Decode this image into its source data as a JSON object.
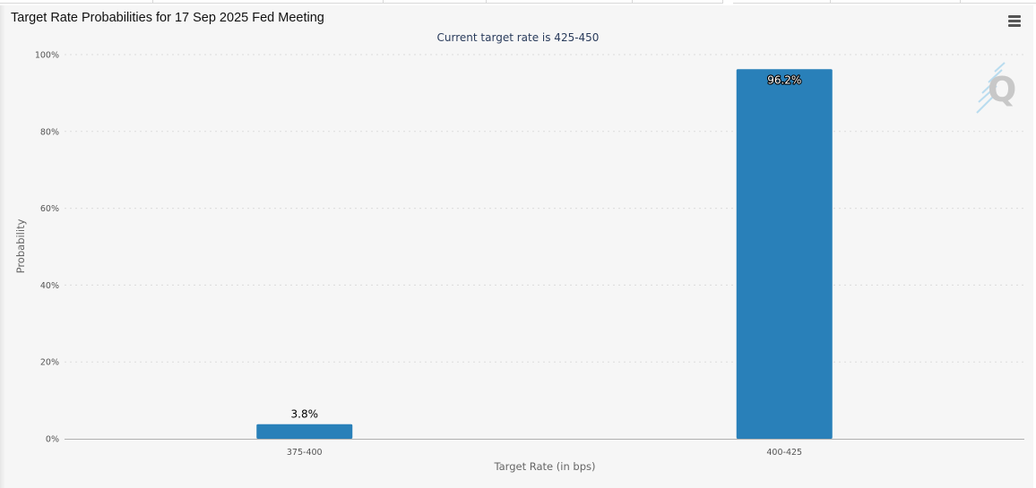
{
  "header": {
    "title": "Target Rate Probabilities for 17 Sep 2025 Fed Meeting",
    "subtitle": "Current target rate is 425-450"
  },
  "colors": {
    "bar": "#2980b9",
    "grid": "#dcdcdc",
    "axis_text": "#555555",
    "background": "#f6f6f6"
  },
  "icons": {
    "menu": "hamburger-menu-icon",
    "watermark": "q-logo-watermark"
  },
  "chart_data": {
    "type": "bar",
    "title": "Target Rate Probabilities for 17 Sep 2025 Fed Meeting",
    "subtitle": "Current target rate is 425-450",
    "xlabel": "Target Rate (in bps)",
    "ylabel": "Probability",
    "categories": [
      "375-400",
      "400-425"
    ],
    "values": [
      3.8,
      96.2
    ],
    "data_labels": [
      "3.8%",
      "96.2%"
    ],
    "ylim": [
      0,
      100
    ],
    "y_ticks": [
      0,
      20,
      40,
      60,
      80,
      100
    ],
    "y_tick_labels": [
      "0%",
      "20%",
      "40%",
      "60%",
      "80%",
      "100%"
    ],
    "grid": true,
    "legend": "none"
  }
}
